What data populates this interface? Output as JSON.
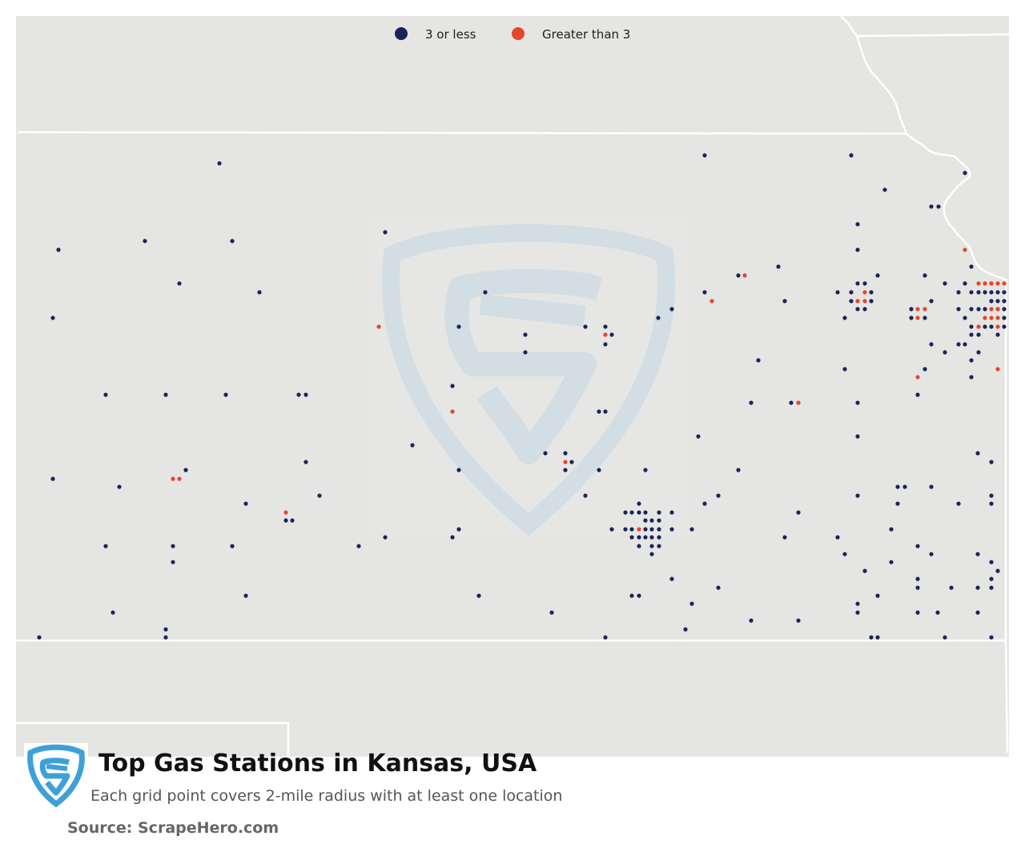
{
  "map": {
    "title": "Top Gas Stations in Kansas, USA",
    "subtitle": "Each grid point covers 2-mile radius with at least one location",
    "source": "Source: ScrapeHero.com",
    "background_color": "#e5e5e3",
    "border_color": "#ffffff",
    "watermark_color": "#c9d9e6",
    "logo_color": "#3fa0d8",
    "legend": [
      {
        "label": "3 or less",
        "color": "#1b2459"
      },
      {
        "label": "Greater than 3",
        "color": "#e5462a"
      }
    ],
    "points": {
      "low": [
        [
          274,
          204
        ],
        [
          73,
          312
        ],
        [
          181,
          301
        ],
        [
          290,
          301
        ],
        [
          224,
          354
        ],
        [
          324,
          365
        ],
        [
          66,
          397
        ],
        [
          481,
          290
        ],
        [
          606,
          365
        ],
        [
          573,
          408
        ],
        [
          656,
          418
        ],
        [
          656,
          440
        ],
        [
          731,
          408
        ],
        [
          764,
          418
        ],
        [
          756,
          408
        ],
        [
          756,
          430
        ],
        [
          132,
          493
        ],
        [
          207,
          493
        ],
        [
          282,
          493
        ],
        [
          373,
          493
        ],
        [
          382,
          493
        ],
        [
          748,
          514
        ],
        [
          756,
          514
        ],
        [
          565,
          482
        ],
        [
          515,
          556
        ],
        [
          66,
          598
        ],
        [
          149,
          608
        ],
        [
          232,
          587
        ],
        [
          382,
          577
        ],
        [
          399,
          619
        ],
        [
          307,
          629
        ],
        [
          357,
          650
        ],
        [
          365,
          650
        ],
        [
          573,
          587
        ],
        [
          681,
          566
        ],
        [
          706,
          566
        ],
        [
          714,
          577
        ],
        [
          706,
          587
        ],
        [
          748,
          587
        ],
        [
          806,
          587
        ],
        [
          731,
          619
        ],
        [
          132,
          682
        ],
        [
          216,
          682
        ],
        [
          216,
          702
        ],
        [
          290,
          682
        ],
        [
          448,
          682
        ],
        [
          481,
          671
        ],
        [
          565,
          671
        ],
        [
          573,
          661
        ],
        [
          307,
          744
        ],
        [
          141,
          765
        ],
        [
          207,
          786
        ],
        [
          207,
          796
        ],
        [
          49,
          796
        ],
        [
          598,
          744
        ],
        [
          689,
          765
        ],
        [
          756,
          796
        ],
        [
          789,
          744
        ],
        [
          798,
          744
        ],
        [
          798,
          629
        ],
        [
          781,
          640
        ],
        [
          789,
          640
        ],
        [
          798,
          640
        ],
        [
          806,
          640
        ],
        [
          823,
          640
        ],
        [
          839,
          640
        ],
        [
          764,
          661
        ],
        [
          781,
          661
        ],
        [
          789,
          661
        ],
        [
          806,
          661
        ],
        [
          814,
          661
        ],
        [
          823,
          661
        ],
        [
          839,
          661
        ],
        [
          864,
          661
        ],
        [
          806,
          650
        ],
        [
          814,
          650
        ],
        [
          823,
          650
        ],
        [
          789,
          671
        ],
        [
          798,
          671
        ],
        [
          806,
          671
        ],
        [
          814,
          671
        ],
        [
          823,
          671
        ],
        [
          798,
          682
        ],
        [
          814,
          682
        ],
        [
          823,
          682
        ],
        [
          814,
          692
        ],
        [
          839,
          723
        ],
        [
          864,
          754
        ],
        [
          856,
          786
        ],
        [
          897,
          734
        ],
        [
          880,
          194
        ],
        [
          839,
          386
        ],
        [
          822,
          397
        ],
        [
          880,
          365
        ],
        [
          922,
          344
        ],
        [
          972,
          333
        ],
        [
          980,
          376
        ],
        [
          947,
          450
        ],
        [
          938,
          503
        ],
        [
          988,
          503
        ],
        [
          872,
          545
        ],
        [
          922,
          587
        ],
        [
          897,
          619
        ],
        [
          880,
          629
        ],
        [
          997,
          640
        ],
        [
          980,
          671
        ],
        [
          938,
          775
        ],
        [
          997,
          775
        ],
        [
          1063,
          194
        ],
        [
          1105,
          237
        ],
        [
          1163,
          258
        ],
        [
          1172,
          258
        ],
        [
          1205,
          216
        ],
        [
          1071,
          280
        ],
        [
          1071,
          312
        ],
        [
          1096,
          344
        ],
        [
          1071,
          354
        ],
        [
          1080,
          354
        ],
        [
          1046,
          365
        ],
        [
          1063,
          365
        ],
        [
          1088,
          365
        ],
        [
          1063,
          376
        ],
        [
          1088,
          376
        ],
        [
          1071,
          386
        ],
        [
          1080,
          386
        ],
        [
          1055,
          397
        ],
        [
          1155,
          344
        ],
        [
          1138,
          386
        ],
        [
          1138,
          397
        ],
        [
          1155,
          397
        ],
        [
          1163,
          376
        ],
        [
          1180,
          354
        ],
        [
          1197,
          365
        ],
        [
          1197,
          386
        ],
        [
          1205,
          397
        ],
        [
          1163,
          430
        ],
        [
          1180,
          440
        ],
        [
          1197,
          430
        ],
        [
          1205,
          430
        ],
        [
          1213,
          418
        ],
        [
          1222,
          418
        ],
        [
          1155,
          461
        ],
        [
          1146,
          493
        ],
        [
          1055,
          461
        ],
        [
          1071,
          503
        ],
        [
          1071,
          545
        ],
        [
          1205,
          354
        ],
        [
          1213,
          333
        ],
        [
          1213,
          365
        ],
        [
          1213,
          386
        ],
        [
          1213,
          408
        ],
        [
          1222,
          365
        ],
        [
          1222,
          386
        ],
        [
          1230,
          365
        ],
        [
          1230,
          386
        ],
        [
          1230,
          408
        ],
        [
          1238,
          354
        ],
        [
          1238,
          365
        ],
        [
          1246,
          365
        ],
        [
          1254,
          365
        ],
        [
          1238,
          376
        ],
        [
          1246,
          376
        ],
        [
          1254,
          376
        ],
        [
          1246,
          386
        ],
        [
          1254,
          386
        ],
        [
          1238,
          408
        ],
        [
          1254,
          397
        ],
        [
          1254,
          408
        ],
        [
          1246,
          418
        ],
        [
          1222,
          440
        ],
        [
          1213,
          450
        ],
        [
          1213,
          471
        ],
        [
          1221,
          566
        ],
        [
          1238,
          577
        ],
        [
          1121,
          608
        ],
        [
          1130,
          608
        ],
        [
          1163,
          608
        ],
        [
          1121,
          629
        ],
        [
          1197,
          629
        ],
        [
          1238,
          619
        ],
        [
          1238,
          629
        ],
        [
          1071,
          619
        ],
        [
          1113,
          661
        ],
        [
          1046,
          671
        ],
        [
          1055,
          692
        ],
        [
          1080,
          713
        ],
        [
          1113,
          702
        ],
        [
          1146,
          682
        ],
        [
          1163,
          692
        ],
        [
          1221,
          692
        ],
        [
          1238,
          702
        ],
        [
          1246,
          713
        ],
        [
          1238,
          723
        ],
        [
          1146,
          723
        ],
        [
          1146,
          734
        ],
        [
          1188,
          734
        ],
        [
          1221,
          734
        ],
        [
          1238,
          734
        ],
        [
          1071,
          754
        ],
        [
          1096,
          744
        ],
        [
          1071,
          765
        ],
        [
          1146,
          765
        ],
        [
          1171,
          765
        ],
        [
          1221,
          765
        ],
        [
          1088,
          796
        ],
        [
          1096,
          796
        ],
        [
          1180,
          796
        ],
        [
          1238,
          796
        ]
      ],
      "high": [
        [
          473,
          408
        ],
        [
          565,
          514
        ],
        [
          216,
          598
        ],
        [
          224,
          598
        ],
        [
          357,
          640
        ],
        [
          756,
          418
        ],
        [
          706,
          577
        ],
        [
          798,
          661
        ],
        [
          889,
          376
        ],
        [
          930,
          344
        ],
        [
          997,
          503
        ],
        [
          1080,
          365
        ],
        [
          1071,
          376
        ],
        [
          1080,
          376
        ],
        [
          1146,
          386
        ],
        [
          1155,
          386
        ],
        [
          1146,
          397
        ],
        [
          1146,
          471
        ],
        [
          1205,
          312
        ],
        [
          1222,
          354
        ],
        [
          1230,
          354
        ],
        [
          1238,
          354
        ],
        [
          1246,
          354
        ],
        [
          1254,
          354
        ],
        [
          1238,
          386
        ],
        [
          1246,
          386
        ],
        [
          1230,
          397
        ],
        [
          1238,
          397
        ],
        [
          1246,
          397
        ],
        [
          1222,
          408
        ],
        [
          1246,
          408
        ],
        [
          1246,
          461
        ]
      ]
    }
  }
}
